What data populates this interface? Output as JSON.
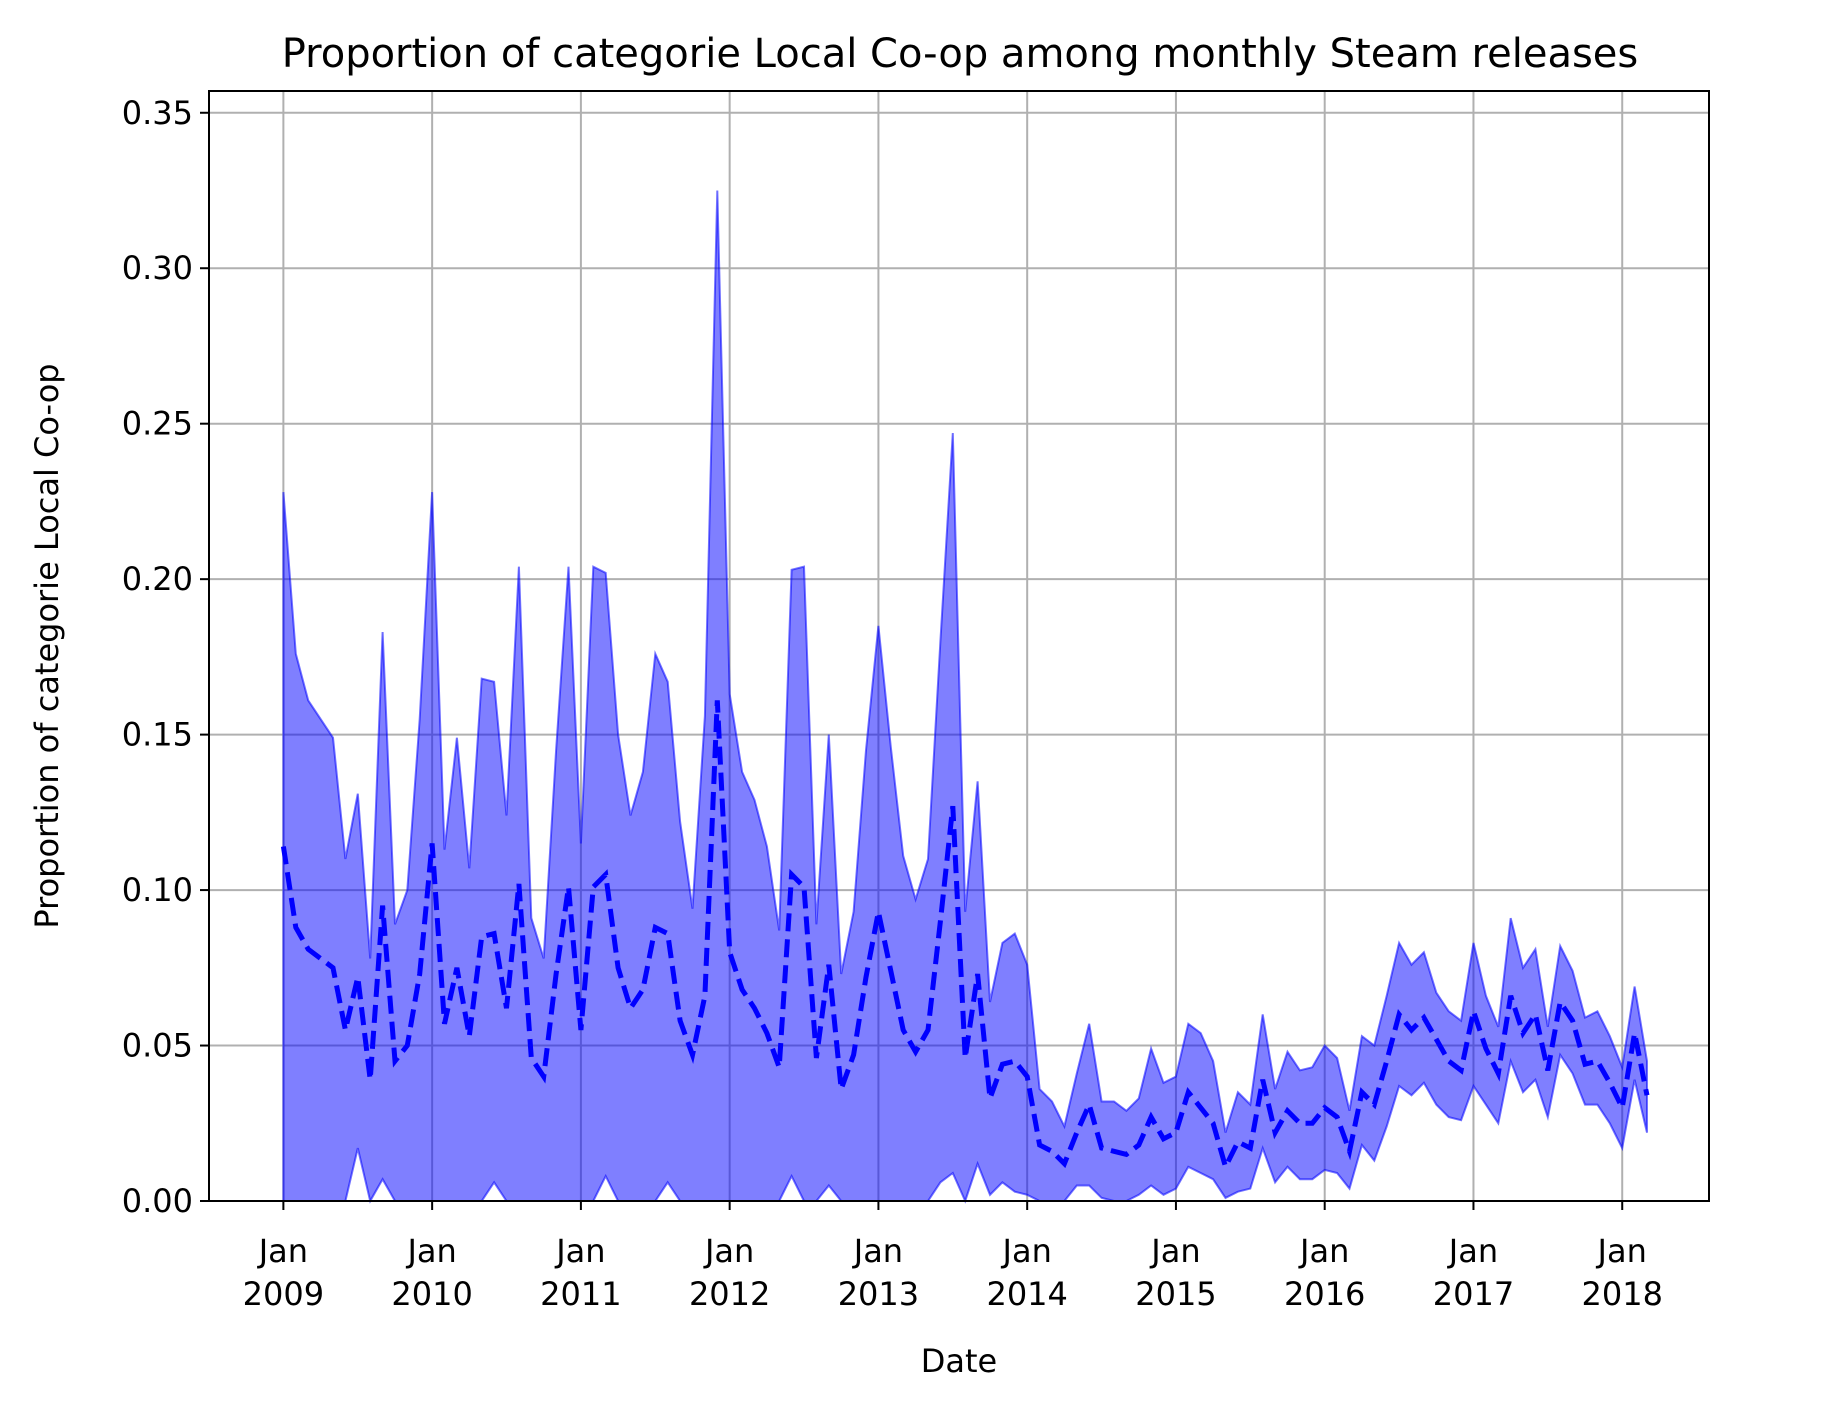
{
  "chart_data": {
    "type": "line",
    "title": "Proportion of categorie Local Co-op among monthly Steam releases",
    "xlabel": "Date",
    "ylabel": "Proportion of categorie Local Co-op",
    "ylim": [
      0,
      0.357
    ],
    "xlim": [
      "2008-07",
      "2018-08"
    ],
    "grid": true,
    "yticks": [
      "0.00",
      "0.05",
      "0.10",
      "0.15",
      "0.20",
      "0.25",
      "0.30",
      "0.35"
    ],
    "xticks": [
      {
        "month": "Jan",
        "year": "2009",
        "date": "2009-01"
      },
      {
        "month": "Jan",
        "year": "2010",
        "date": "2010-01"
      },
      {
        "month": "Jan",
        "year": "2011",
        "date": "2011-01"
      },
      {
        "month": "Jan",
        "year": "2012",
        "date": "2012-01"
      },
      {
        "month": "Jan",
        "year": "2013",
        "date": "2013-01"
      },
      {
        "month": "Jan",
        "year": "2014",
        "date": "2014-01"
      },
      {
        "month": "Jan",
        "year": "2015",
        "date": "2015-01"
      },
      {
        "month": "Jan",
        "year": "2016",
        "date": "2016-01"
      },
      {
        "month": "Jan",
        "year": "2017",
        "date": "2017-01"
      },
      {
        "month": "Jan",
        "year": "2018",
        "date": "2018-01"
      }
    ],
    "start_month": "2009-01",
    "series": [
      {
        "role": "proportion",
        "style": "dashed",
        "color": "#0000ff",
        "values": [
          0.114,
          0.088,
          0.081,
          0.078,
          0.075,
          0.055,
          0.072,
          0.039,
          0.095,
          0.045,
          0.05,
          0.073,
          0.115,
          0.057,
          0.075,
          0.053,
          0.085,
          0.086,
          0.062,
          0.102,
          0.046,
          0.04,
          0.073,
          0.101,
          0.055,
          0.101,
          0.105,
          0.075,
          0.062,
          0.068,
          0.088,
          0.086,
          0.058,
          0.047,
          0.066,
          0.161,
          0.08,
          0.068,
          0.062,
          0.054,
          0.043,
          0.105,
          0.101,
          0.046,
          0.076,
          0.036,
          0.047,
          0.072,
          0.093,
          0.074,
          0.055,
          0.048,
          0.055,
          0.09,
          0.127,
          0.046,
          0.073,
          0.033,
          0.044,
          0.045,
          0.04,
          0.018,
          0.016,
          0.012,
          0.022,
          0.031,
          0.017,
          0.016,
          0.015,
          0.018,
          0.027,
          0.02,
          0.022,
          0.035,
          0.03,
          0.025,
          0.011,
          0.019,
          0.017,
          0.039,
          0.022,
          0.029,
          0.025,
          0.025,
          0.03,
          0.027,
          0.016,
          0.035,
          0.031,
          0.045,
          0.06,
          0.055,
          0.059,
          0.052,
          0.045,
          0.042,
          0.061,
          0.049,
          0.041,
          0.066,
          0.054,
          0.06,
          0.042,
          0.064,
          0.058,
          0.044,
          0.045,
          0.038,
          0.03,
          0.054,
          0.034
        ]
      },
      {
        "role": "upper_bound",
        "style": "fill",
        "color": "#0000ff",
        "values": [
          0.228,
          0.176,
          0.161,
          0.155,
          0.149,
          0.11,
          0.131,
          0.078,
          0.183,
          0.089,
          0.1,
          0.155,
          0.228,
          0.113,
          0.149,
          0.107,
          0.168,
          0.167,
          0.124,
          0.204,
          0.091,
          0.078,
          0.145,
          0.204,
          0.115,
          0.204,
          0.202,
          0.15,
          0.124,
          0.138,
          0.176,
          0.167,
          0.122,
          0.094,
          0.156,
          0.325,
          0.163,
          0.138,
          0.129,
          0.114,
          0.087,
          0.203,
          0.204,
          0.089,
          0.15,
          0.073,
          0.093,
          0.145,
          0.185,
          0.146,
          0.111,
          0.097,
          0.11,
          0.18,
          0.247,
          0.093,
          0.135,
          0.064,
          0.083,
          0.086,
          0.076,
          0.036,
          0.032,
          0.024,
          0.041,
          0.057,
          0.032,
          0.032,
          0.029,
          0.033,
          0.049,
          0.038,
          0.04,
          0.057,
          0.054,
          0.045,
          0.022,
          0.035,
          0.031,
          0.06,
          0.036,
          0.048,
          0.042,
          0.043,
          0.05,
          0.046,
          0.029,
          0.053,
          0.05,
          0.066,
          0.083,
          0.076,
          0.08,
          0.067,
          0.061,
          0.058,
          0.083,
          0.066,
          0.056,
          0.091,
          0.075,
          0.081,
          0.056,
          0.082,
          0.074,
          0.059,
          0.061,
          0.053,
          0.043,
          0.069,
          0.045
        ]
      },
      {
        "role": "lower_bound",
        "style": "fill",
        "color": "#0000ff",
        "values": [
          0.0,
          0.0,
          0.0,
          0.0,
          0.0,
          0.0,
          0.017,
          0.0,
          0.007,
          0.0,
          0.0,
          0.0,
          0.0,
          0.0,
          0.0,
          0.0,
          0.0,
          0.006,
          0.0,
          0.0,
          0.0,
          0.0,
          0.0,
          0.0,
          0.0,
          0.0,
          0.008,
          0.0,
          0.0,
          0.0,
          0.0,
          0.006,
          0.0,
          0.0,
          0.0,
          0.0,
          0.0,
          0.0,
          0.0,
          0.0,
          0.0,
          0.008,
          0.0,
          0.0,
          0.005,
          0.0,
          0.0,
          0.0,
          0.0,
          0.0,
          0.0,
          0.0,
          0.0,
          0.006,
          0.009,
          0.0,
          0.012,
          0.002,
          0.006,
          0.003,
          0.002,
          0.0,
          0.0,
          0.0,
          0.005,
          0.005,
          0.001,
          0.0,
          0.0,
          0.002,
          0.005,
          0.002,
          0.004,
          0.011,
          0.009,
          0.007,
          0.001,
          0.003,
          0.004,
          0.017,
          0.006,
          0.011,
          0.007,
          0.007,
          0.01,
          0.009,
          0.004,
          0.018,
          0.013,
          0.024,
          0.037,
          0.034,
          0.038,
          0.031,
          0.027,
          0.026,
          0.037,
          0.031,
          0.025,
          0.045,
          0.035,
          0.039,
          0.027,
          0.047,
          0.041,
          0.031,
          0.031,
          0.025,
          0.017,
          0.039,
          0.022
        ]
      }
    ]
  }
}
